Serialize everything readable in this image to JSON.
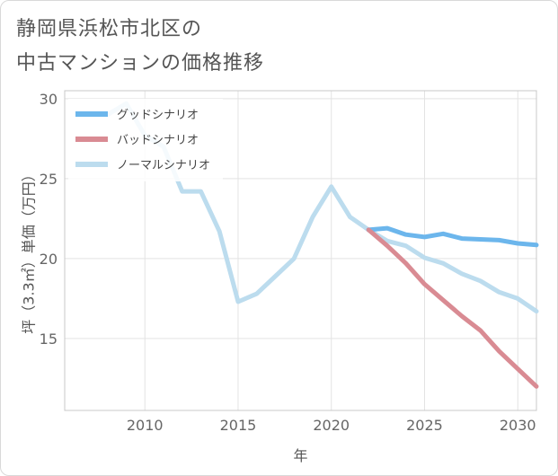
{
  "title": {
    "line1": "静岡県浜松市北区の",
    "line2": "中古マンションの価格推移"
  },
  "chart_data": {
    "type": "line",
    "xlabel": "年",
    "ylabel": "坪（3.3㎡）単価（万円）",
    "xlim": [
      2005.7,
      2031
    ],
    "ylim": [
      10.5,
      30.5
    ],
    "xticks": [
      2010,
      2015,
      2020,
      2025,
      2030
    ],
    "yticks": [
      15,
      20,
      25,
      30
    ],
    "grid": true,
    "legend_position": "top-left",
    "series": [
      {
        "name": "グッドシナリオ",
        "color": "#6cb6ec",
        "x": [
          2022,
          2023,
          2024,
          2025,
          2026,
          2027,
          2028,
          2029,
          2030,
          2031
        ],
        "y": [
          21.8,
          21.9,
          21.5,
          21.35,
          21.55,
          21.25,
          21.2,
          21.15,
          20.95,
          20.85
        ]
      },
      {
        "name": "バッドシナリオ",
        "color": "#d98b93",
        "x": [
          2022,
          2023,
          2024,
          2025,
          2026,
          2027,
          2028,
          2029,
          2030,
          2031
        ],
        "y": [
          21.8,
          20.8,
          19.7,
          18.4,
          17.4,
          16.4,
          15.5,
          14.2,
          13.1,
          12.0
        ]
      },
      {
        "name": "ノーマルシナリオ",
        "color": "#bcdcee",
        "x": [
          2008,
          2009,
          2010,
          2011,
          2012,
          2013,
          2014,
          2015,
          2016,
          2017,
          2018,
          2019,
          2020,
          2021,
          2022,
          2023,
          2024,
          2025,
          2026,
          2027,
          2028,
          2029,
          2030,
          2031
        ],
        "y": [
          29.0,
          29.7,
          27.7,
          27.0,
          24.2,
          24.2,
          21.7,
          17.3,
          17.8,
          18.9,
          20.0,
          22.6,
          24.5,
          22.6,
          21.8,
          21.1,
          20.8,
          20.05,
          19.7,
          19.05,
          18.6,
          17.9,
          17.5,
          16.7
        ]
      }
    ]
  }
}
